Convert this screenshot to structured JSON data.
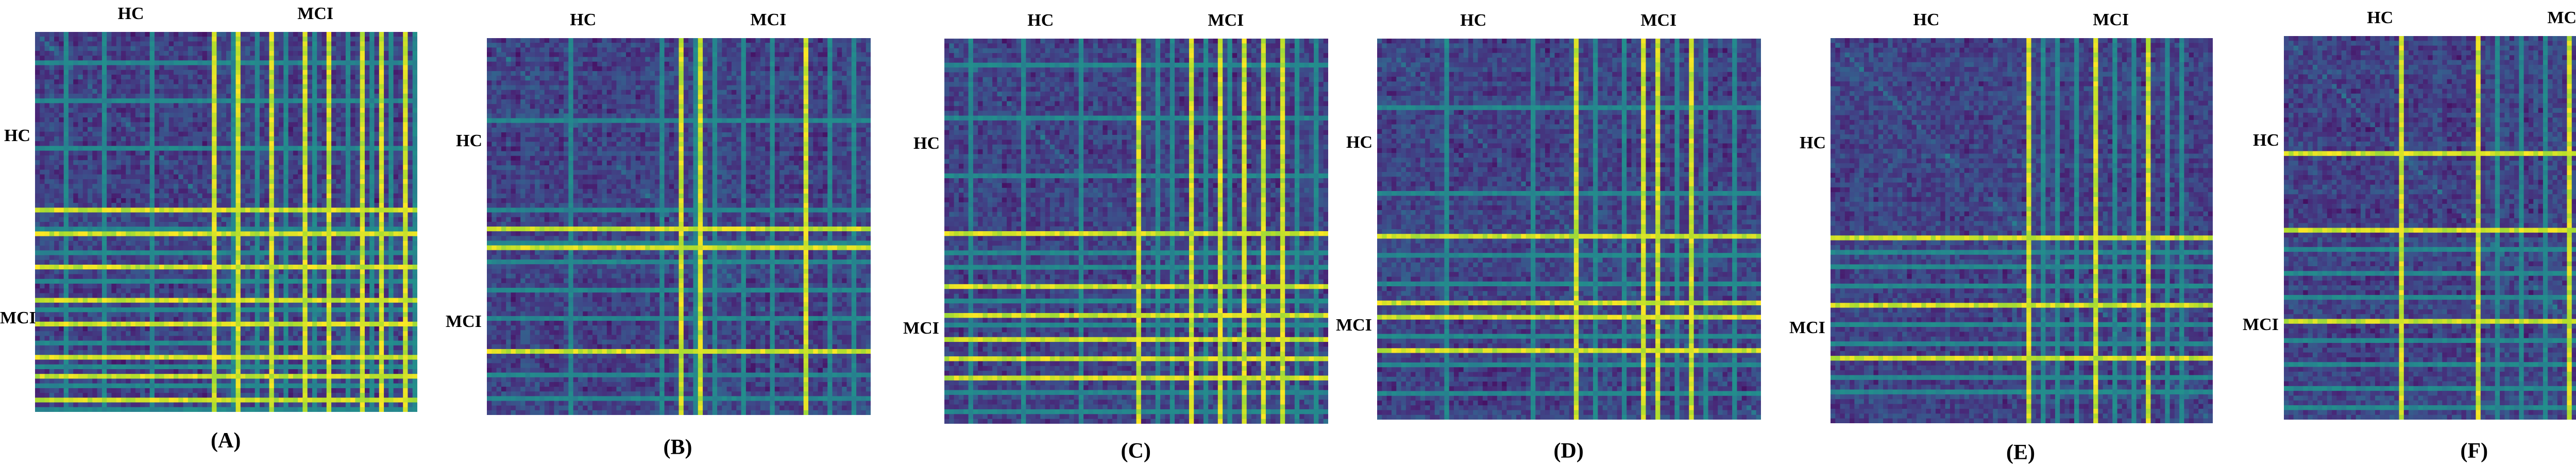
{
  "figure": {
    "type": "heatmap-panels",
    "colormap": "viridis",
    "colors": {
      "low": "#440154",
      "mid": "#21918c",
      "high": "#fde725"
    }
  },
  "chart_data": [
    {
      "type": "heatmap",
      "caption": "(A)",
      "x_groups": [
        {
          "label": "HC",
          "range": [
            0,
            0.5
          ]
        },
        {
          "label": "MCI",
          "range": [
            0.5,
            1
          ]
        }
      ],
      "y_groups": [
        {
          "label": "HC",
          "range": [
            0,
            0.5
          ]
        },
        {
          "label": "MCI",
          "range": [
            0.5,
            1
          ]
        }
      ],
      "hc_fraction": 0.5,
      "bright_lines": [
        0.47,
        0.53,
        0.62,
        0.71,
        0.77,
        0.86,
        0.91,
        0.97
      ],
      "medium_lines": [
        0.08,
        0.18,
        0.31,
        0.52,
        0.58,
        0.66,
        0.74,
        0.82,
        0.89,
        0.94,
        1.0
      ]
    },
    {
      "type": "heatmap",
      "caption": "(B)",
      "x_groups": [
        {
          "label": "HC",
          "range": [
            0,
            0.5
          ]
        },
        {
          "label": "MCI",
          "range": [
            0.5,
            1
          ]
        }
      ],
      "y_groups": [
        {
          "label": "HC",
          "range": [
            0,
            0.5
          ]
        },
        {
          "label": "MCI",
          "range": [
            0.5,
            1
          ]
        }
      ],
      "hc_fraction": 0.5,
      "bright_lines": [
        0.51,
        0.84,
        0.56
      ],
      "medium_lines": [
        0.22,
        0.45,
        0.54,
        0.6,
        0.67,
        0.75,
        0.9,
        0.96
      ]
    },
    {
      "type": "heatmap",
      "caption": "(C)",
      "x_groups": [
        {
          "label": "HC",
          "range": [
            0,
            0.5
          ]
        },
        {
          "label": "MCI",
          "range": [
            0.5,
            1
          ]
        }
      ],
      "y_groups": [
        {
          "label": "HC",
          "range": [
            0,
            0.5
          ]
        },
        {
          "label": "MCI",
          "range": [
            0.5,
            1
          ]
        }
      ],
      "hc_fraction": 0.5,
      "bright_lines": [
        0.51,
        0.72,
        0.79,
        0.83,
        0.64,
        0.88
      ],
      "medium_lines": [
        0.06,
        0.2,
        0.35,
        0.56,
        0.6,
        0.68,
        0.75,
        0.93,
        0.98
      ]
    },
    {
      "type": "heatmap",
      "caption": "(D)",
      "x_groups": [
        {
          "label": "HC",
          "range": [
            0,
            0.5
          ]
        },
        {
          "label": "MCI",
          "range": [
            0.5,
            1
          ]
        }
      ],
      "y_groups": [
        {
          "label": "HC",
          "range": [
            0,
            0.5
          ]
        },
        {
          "label": "MCI",
          "range": [
            0.5,
            1
          ]
        }
      ],
      "hc_fraction": 0.5,
      "bright_lines": [
        0.52,
        0.7,
        0.74,
        0.82
      ],
      "medium_lines": [
        0.18,
        0.4,
        0.57,
        0.64,
        0.78,
        0.86,
        0.94
      ]
    },
    {
      "type": "heatmap",
      "caption": "(E)",
      "x_groups": [
        {
          "label": "HC",
          "range": [
            0,
            0.5
          ]
        },
        {
          "label": "MCI",
          "range": [
            0.5,
            1
          ]
        }
      ],
      "y_groups": [
        {
          "label": "HC",
          "range": [
            0,
            0.5
          ]
        },
        {
          "label": "MCI",
          "range": [
            0.5,
            1
          ]
        }
      ],
      "hc_fraction": 0.5,
      "bright_lines": [
        0.52,
        0.7,
        0.84
      ],
      "medium_lines": [
        0.56,
        0.6,
        0.65,
        0.75,
        0.8,
        0.88,
        0.93
      ]
    },
    {
      "type": "heatmap",
      "caption": "(F)",
      "x_groups": [
        {
          "label": "HC",
          "range": [
            0,
            0.5
          ]
        },
        {
          "label": "MCI",
          "range": [
            0.5,
            1
          ]
        }
      ],
      "y_groups": [
        {
          "label": "HC",
          "range": [
            0,
            0.5
          ]
        },
        {
          "label": "MCI",
          "range": [
            0.5,
            1
          ]
        }
      ],
      "hc_fraction": 0.5,
      "bright_lines": [
        0.3,
        0.51,
        0.75
      ],
      "medium_lines": [
        0.56,
        0.62,
        0.68,
        0.8,
        0.86,
        0.92,
        0.97
      ]
    }
  ]
}
